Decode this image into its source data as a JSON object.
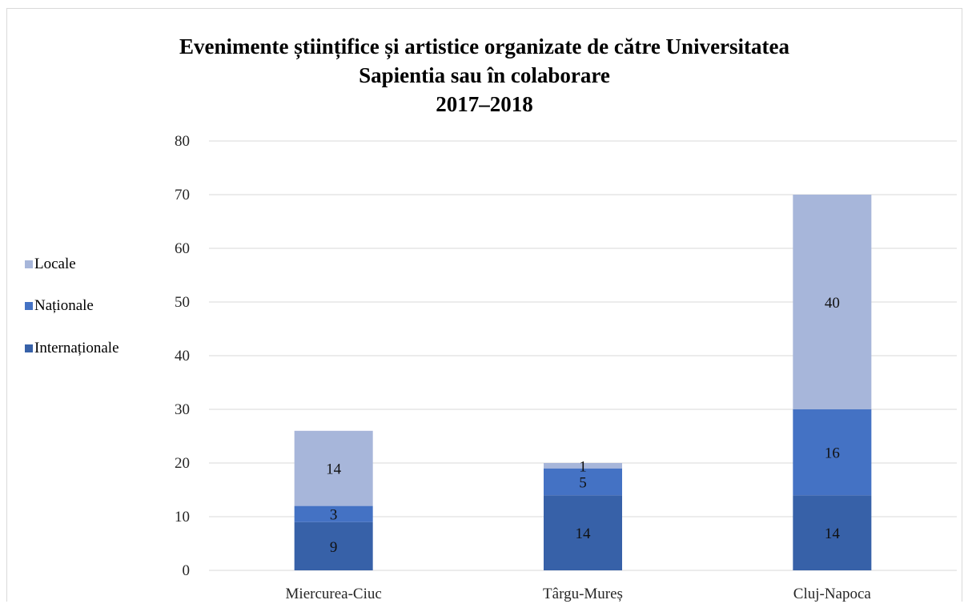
{
  "chart_data": {
    "type": "bar",
    "stacked": true,
    "title": [
      "Evenimente științifice și artistice organizate de către Universitatea",
      "Sapientia sau în colaborare",
      "2017–2018"
    ],
    "categories": [
      "Miercurea-Ciuc",
      "Târgu-Mureș",
      "Cluj-Napoca"
    ],
    "series": [
      {
        "name": "Internaționale",
        "values": [
          9,
          14,
          14
        ],
        "color": "#3761a8"
      },
      {
        "name": "Naționale",
        "values": [
          3,
          5,
          16
        ],
        "color": "#4472c4"
      },
      {
        "name": "Locale",
        "values": [
          14,
          1,
          40
        ],
        "color": "#a7b6da"
      }
    ],
    "ylim": [
      0,
      80
    ],
    "yticks": [
      0,
      10,
      20,
      30,
      40,
      50,
      60,
      70,
      80
    ],
    "grid": true,
    "legend_position": "left",
    "legend_order": [
      "Locale",
      "Naționale",
      "Internaționale"
    ]
  }
}
